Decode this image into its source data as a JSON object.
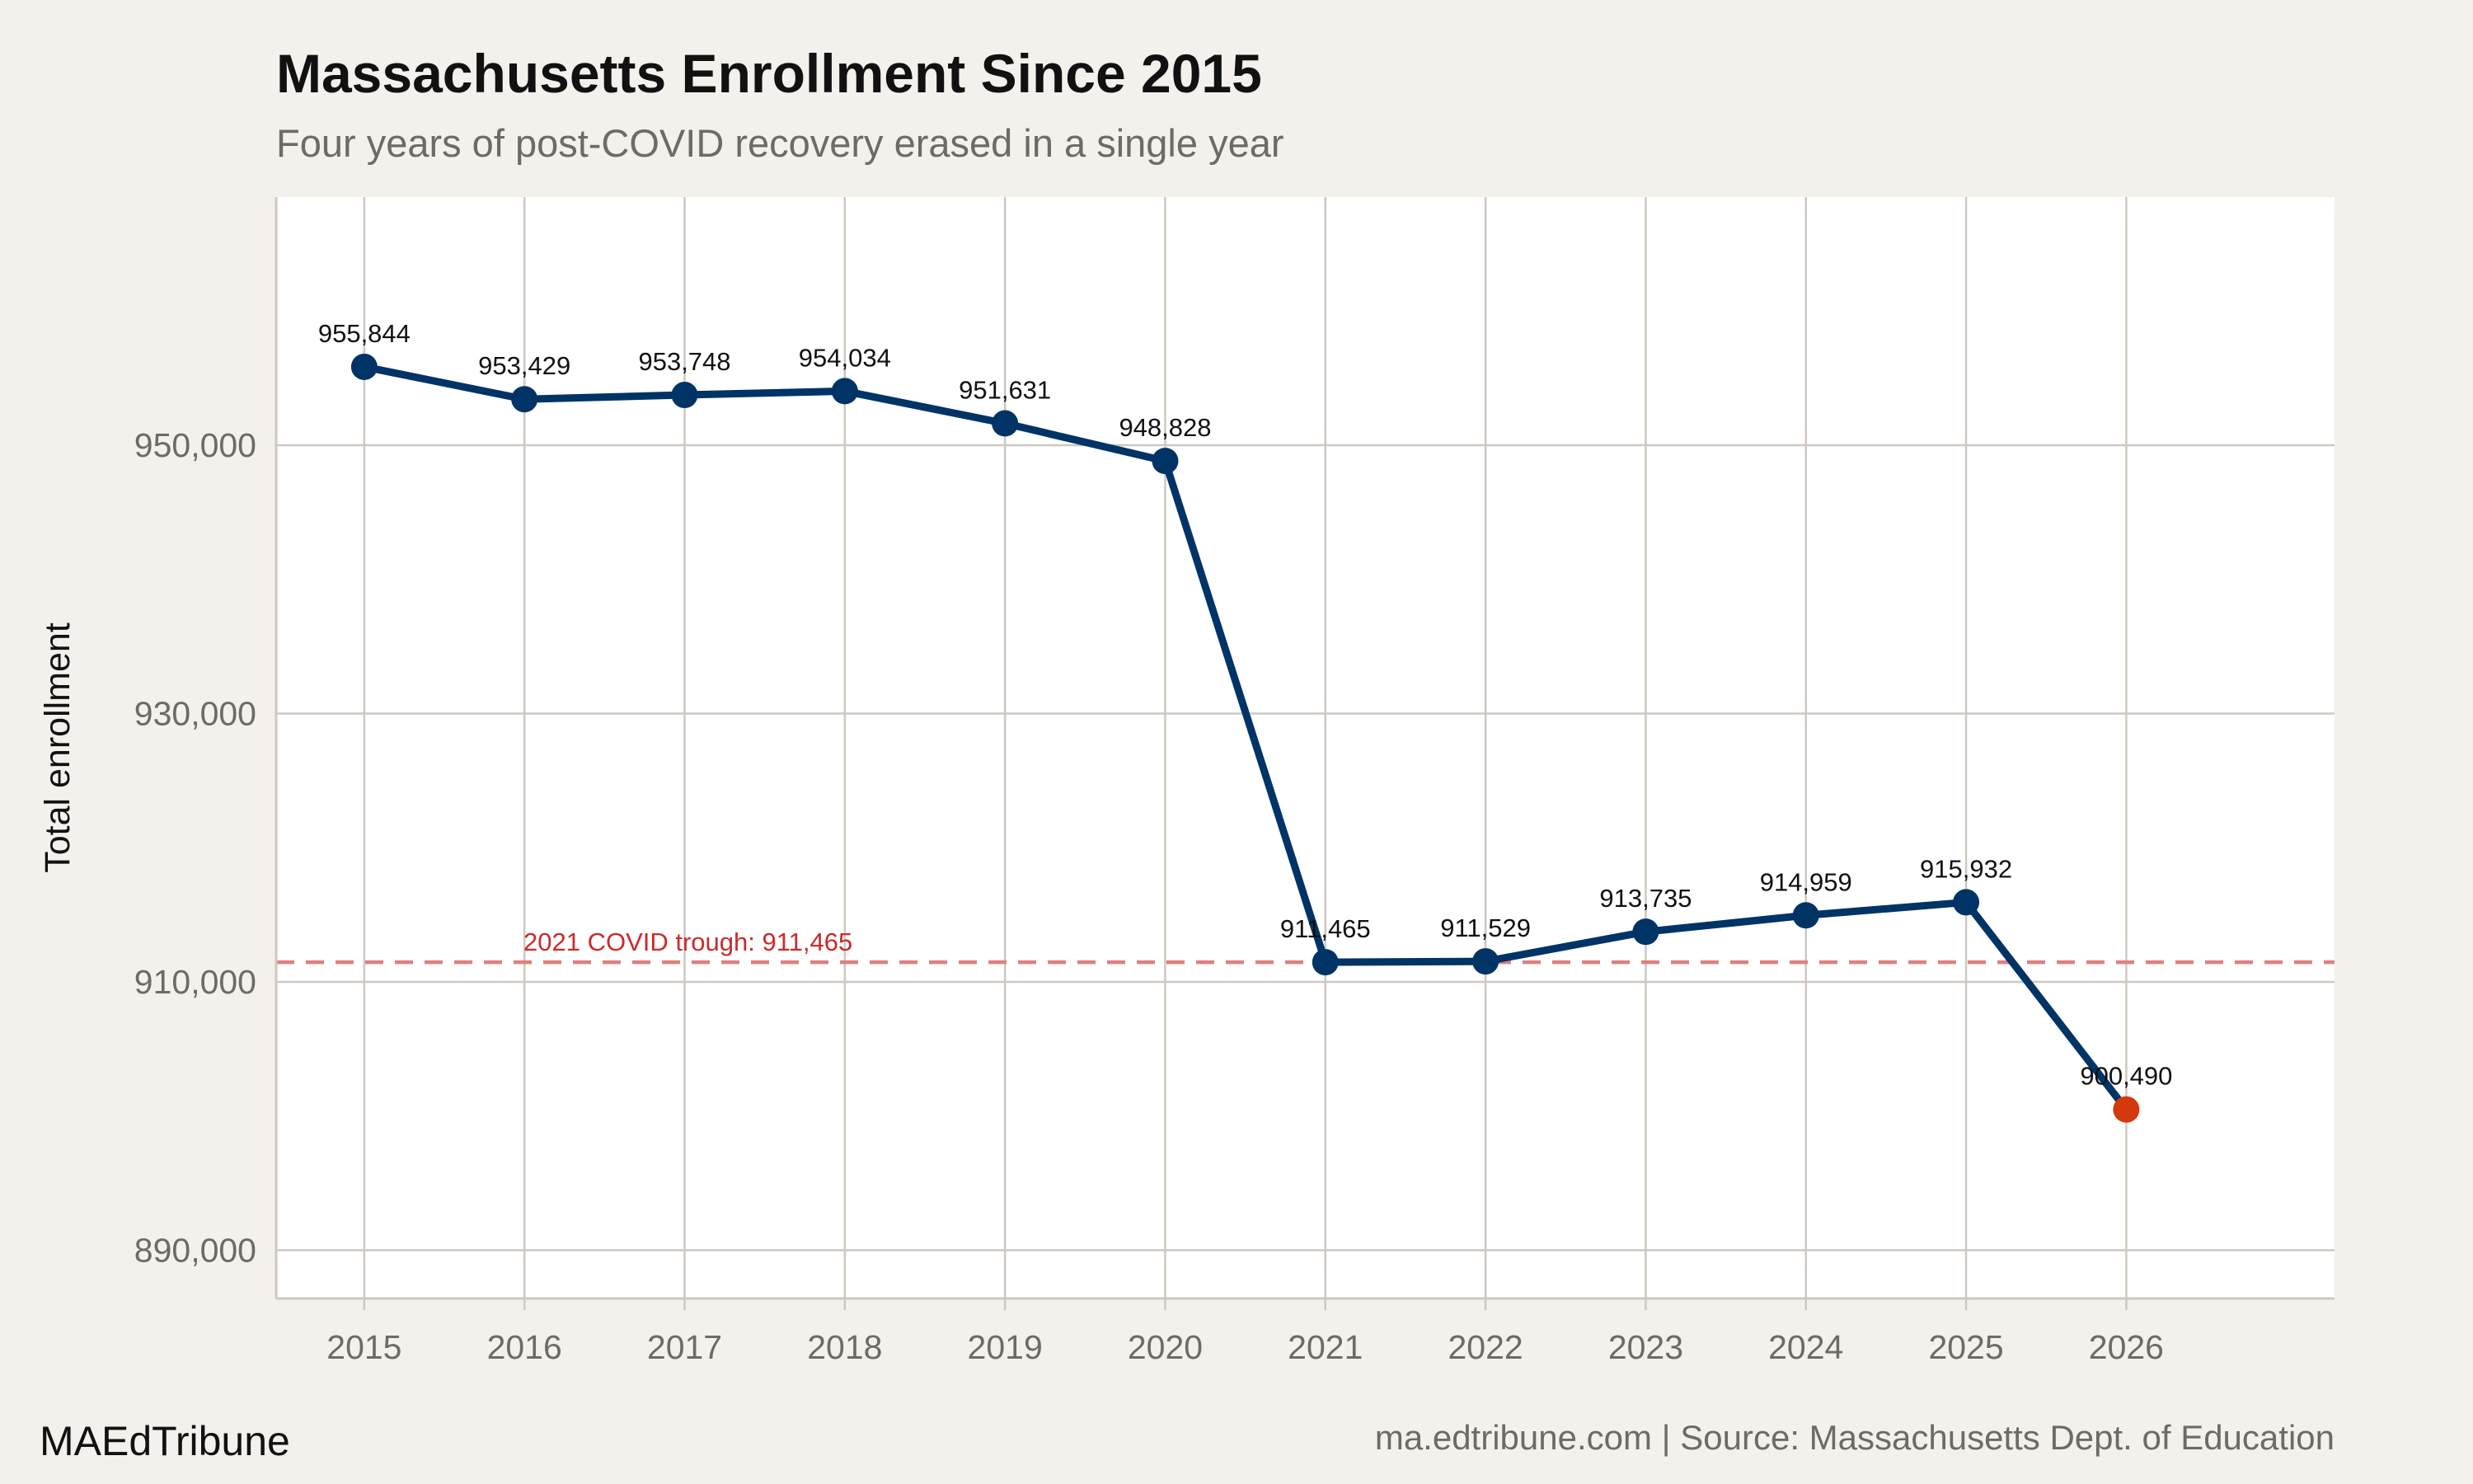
{
  "chart_data": {
    "type": "line",
    "title": "Massachusetts Enrollment Since 2015",
    "subtitle": "Four years of post-COVID recovery erased in a single year",
    "xlabel": "",
    "ylabel": "Total enrollment",
    "x": [
      2015,
      2016,
      2017,
      2018,
      2019,
      2020,
      2021,
      2022,
      2023,
      2024,
      2025,
      2026
    ],
    "x_tick_labels": [
      "2015",
      "2016",
      "2017",
      "2018",
      "2019",
      "2020",
      "2021",
      "2022",
      "2023",
      "2024",
      "2025",
      "2026"
    ],
    "values": [
      955844,
      953429,
      953748,
      954034,
      951631,
      948828,
      911465,
      911529,
      913735,
      914959,
      915932,
      900490
    ],
    "data_labels": [
      "955,844",
      "953,429",
      "953,748",
      "954,034",
      "951,631",
      "948,828",
      "911,465",
      "911,529",
      "913,735",
      "914,959",
      "915,932",
      "900,490"
    ],
    "y_ticks": [
      890000,
      910000,
      930000,
      950000
    ],
    "y_tick_labels": [
      "890,000",
      "910,000",
      "930,000",
      "950,000"
    ],
    "xlim": [
      2014.45,
      2027.3
    ],
    "ylim": [
      886400,
      968500
    ],
    "grid": true,
    "reference_line": {
      "value": 911465,
      "label": "2021 COVID trough: 911,465",
      "style": "dashed"
    },
    "highlight_last_point": true,
    "colors": {
      "line": "#003366",
      "highlight": "#d4380d",
      "reference": "#e07f7f",
      "annotation": "#cc2a2a",
      "background": "#f4f1ec",
      "panel": "#ffffff",
      "grid": "#cdc8c0"
    }
  },
  "footer": {
    "brand": "MAEdTribune",
    "source": "ma.edtribune.com | Source: Massachusetts Dept. of Education"
  }
}
